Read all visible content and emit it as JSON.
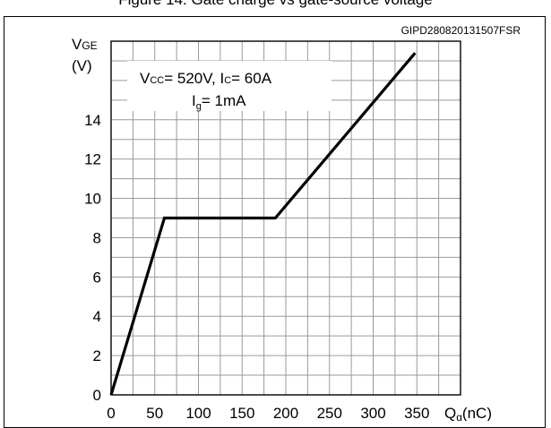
{
  "caption": "Figure 14. Gate charge vs gate-source voltage",
  "figure_code": "GIPD280820131507FSR",
  "chart_data": {
    "type": "line",
    "title": "",
    "ylabel_main": "V",
    "ylabel_sub": "GE",
    "ylabel_unit": "(V)",
    "xlabel_main": "Q",
    "xlabel_sub": "g",
    "xlabel_unit": "(nC)",
    "xlim": [
      0,
      400
    ],
    "ylim": [
      0,
      18
    ],
    "xticks": [
      0,
      50,
      100,
      150,
      200,
      250,
      300,
      350
    ],
    "yticks": [
      0,
      2,
      4,
      6,
      8,
      10,
      12,
      14
    ],
    "grid": true,
    "conditions": {
      "line1_a": "V",
      "line1_a_sub": "CC",
      "line1_b": "= 520V, I",
      "line1_b_sub": "C",
      "line1_c": "= 60A",
      "line2_a": "I",
      "line2_a_sub": "g",
      "line2_b": "= 1mA"
    },
    "series": [
      {
        "x": [
          0,
          61,
          188,
          348
        ],
        "y": [
          0,
          9,
          9,
          17.4
        ]
      }
    ]
  }
}
